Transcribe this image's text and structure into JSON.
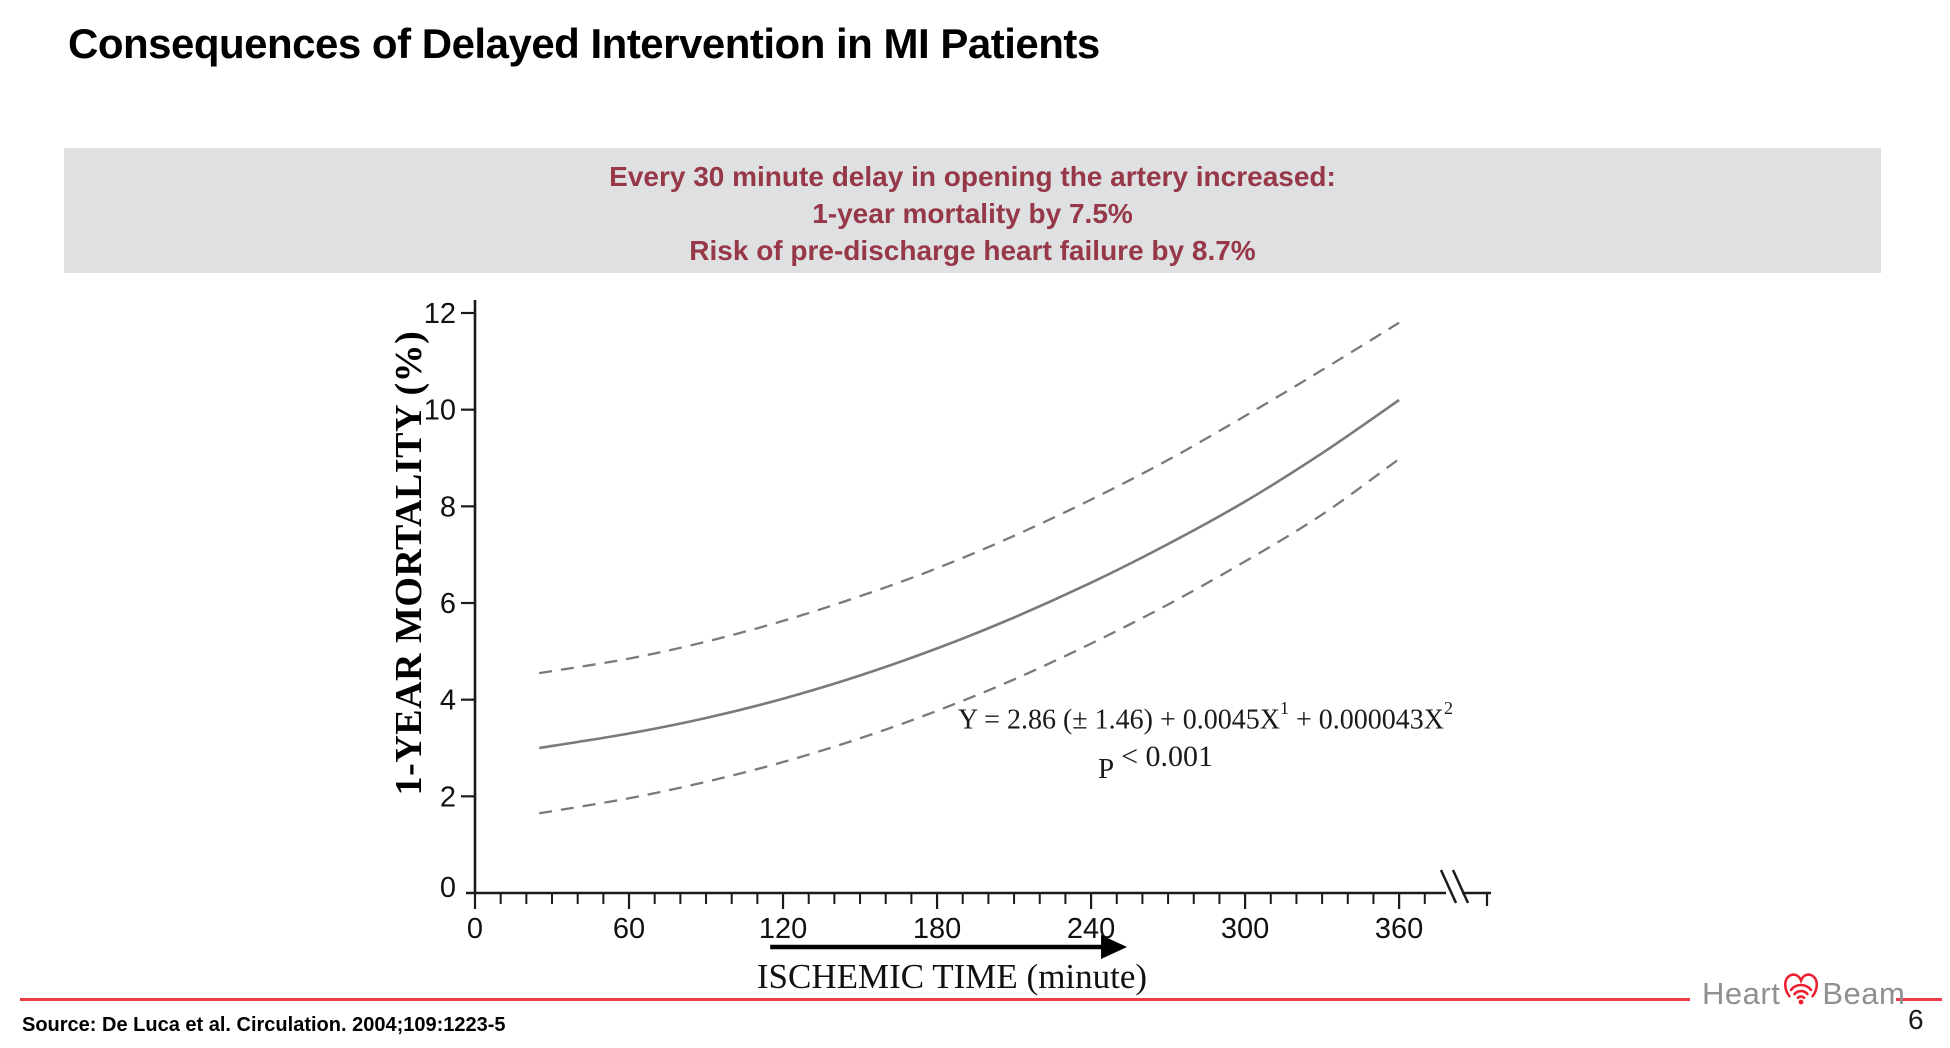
{
  "slide": {
    "title": "Consequences of Delayed Intervention in MI Patients",
    "page_number": "6"
  },
  "banner": {
    "bg_color": "#dfe0e2",
    "text_color": "#963848",
    "lines": [
      "Every 30 minute delay in opening the artery increased:",
      "1-year mortality by 7.5%",
      "Risk of pre-discharge heart failure by 8.7%"
    ]
  },
  "chart_data": {
    "type": "line",
    "title": "",
    "xlabel": "ISCHEMIC TIME (minute)",
    "ylabel": "1-YEAR MORTALITY (%)",
    "xlim": [
      0,
      395
    ],
    "ylim": [
      0,
      12
    ],
    "x_ticks": [
      0,
      60,
      120,
      180,
      240,
      300,
      360
    ],
    "y_ticks": [
      0,
      2,
      4,
      6,
      8,
      10,
      12
    ],
    "minor_tick_step_min": 10,
    "minor_tick_max_min": 370,
    "axis_break_after_x": 360,
    "grid": "off",
    "legend": "none",
    "line_color": "#7a7a7a",
    "axis_color": "#1a1a1a",
    "x": [
      25,
      60,
      90,
      120,
      150,
      180,
      210,
      240,
      270,
      300,
      330,
      360
    ],
    "series": [
      {
        "name": "predicted 1-year mortality",
        "style": "solid",
        "values": [
          3.0,
          3.3,
          3.62,
          4.02,
          4.5,
          5.06,
          5.7,
          6.42,
          7.22,
          8.1,
          9.1,
          10.2
        ]
      },
      {
        "name": "upper 95% CI",
        "style": "dashed",
        "values": [
          4.55,
          4.85,
          5.2,
          5.63,
          6.14,
          6.72,
          7.39,
          8.14,
          8.96,
          9.87,
          10.82,
          11.8
        ]
      },
      {
        "name": "lower 95% CI",
        "style": "dashed",
        "values": [
          1.65,
          1.96,
          2.3,
          2.71,
          3.2,
          3.77,
          4.42,
          5.16,
          5.97,
          6.86,
          7.83,
          8.98
        ]
      }
    ],
    "annotations": {
      "equation": {
        "main1": "Y = 2.86 (± 1.46) + 0.0045X",
        "sup1": "1",
        "main2": " + 0.000043X",
        "sup2": "2"
      },
      "p_label": "P",
      "p_value": "< 0.001"
    },
    "highlight_arrow": {
      "from_min": 115,
      "to_min": 254
    }
  },
  "footer": {
    "source": "Source: De Luca et al. Circulation. 2004;109:1223-5",
    "rule_color": "#ee3a45",
    "logo": {
      "heart_text": "Heart",
      "beam_text": "Beam",
      "heart_color": "#ed1c2e",
      "text_color": "#8e9093"
    }
  }
}
